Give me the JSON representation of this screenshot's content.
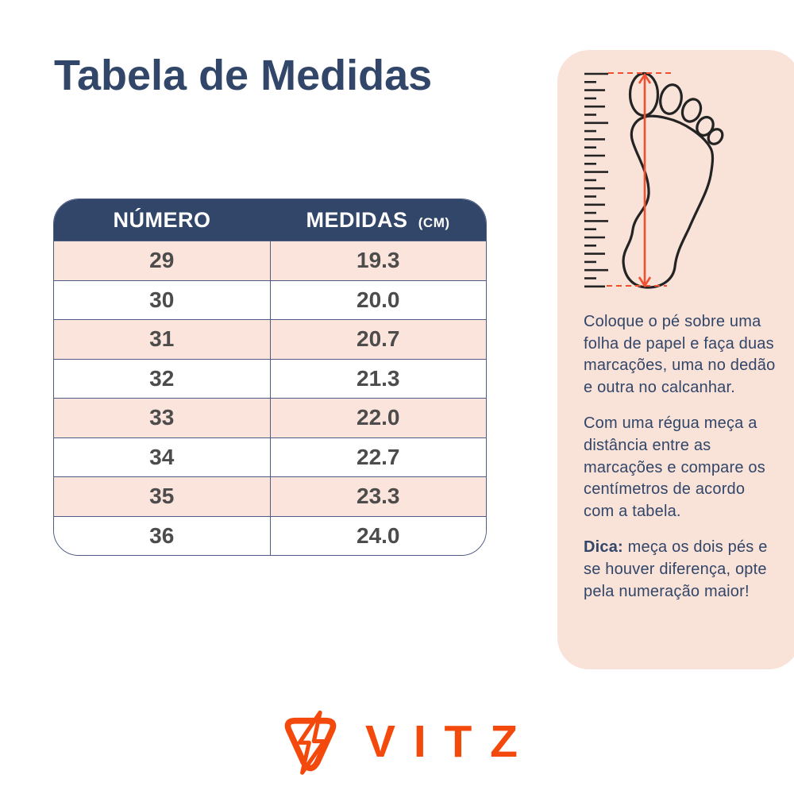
{
  "title": "Tabela de Medidas",
  "table": {
    "headers": {
      "col1": "NÚMERO",
      "col2": "MEDIDAS",
      "col2_unit": "(CM)"
    },
    "rows": [
      {
        "numero": "29",
        "medida": "19.3"
      },
      {
        "numero": "30",
        "medida": "20.0"
      },
      {
        "numero": "31",
        "medida": "20.7"
      },
      {
        "numero": "32",
        "medida": "21.3"
      },
      {
        "numero": "33",
        "medida": "22.0"
      },
      {
        "numero": "34",
        "medida": "22.7"
      },
      {
        "numero": "35",
        "medida": "23.3"
      },
      {
        "numero": "36",
        "medida": "24.0"
      }
    ]
  },
  "panel": {
    "paragraph1": "Coloque o pé sobre uma folha de papel e faça duas marcações, uma no dedão e outra no calcanhar.",
    "paragraph2": "Com uma régua meça a distância entre as marcações e compare os centímetros de acordo com a tabela.",
    "tip_label": "Dica:",
    "tip_text": " meça os dois pés e se houver diferença, opte pela numeração maior!"
  },
  "footer": {
    "brand": "VITZ"
  },
  "colors": {
    "navy": "#314669",
    "line": "#4d5b85",
    "pink": "#fbe4db",
    "panel": "#f9e2d8",
    "red": "#f04f30",
    "orange": "#f4490c",
    "cell_text": "#4c4c4c"
  }
}
